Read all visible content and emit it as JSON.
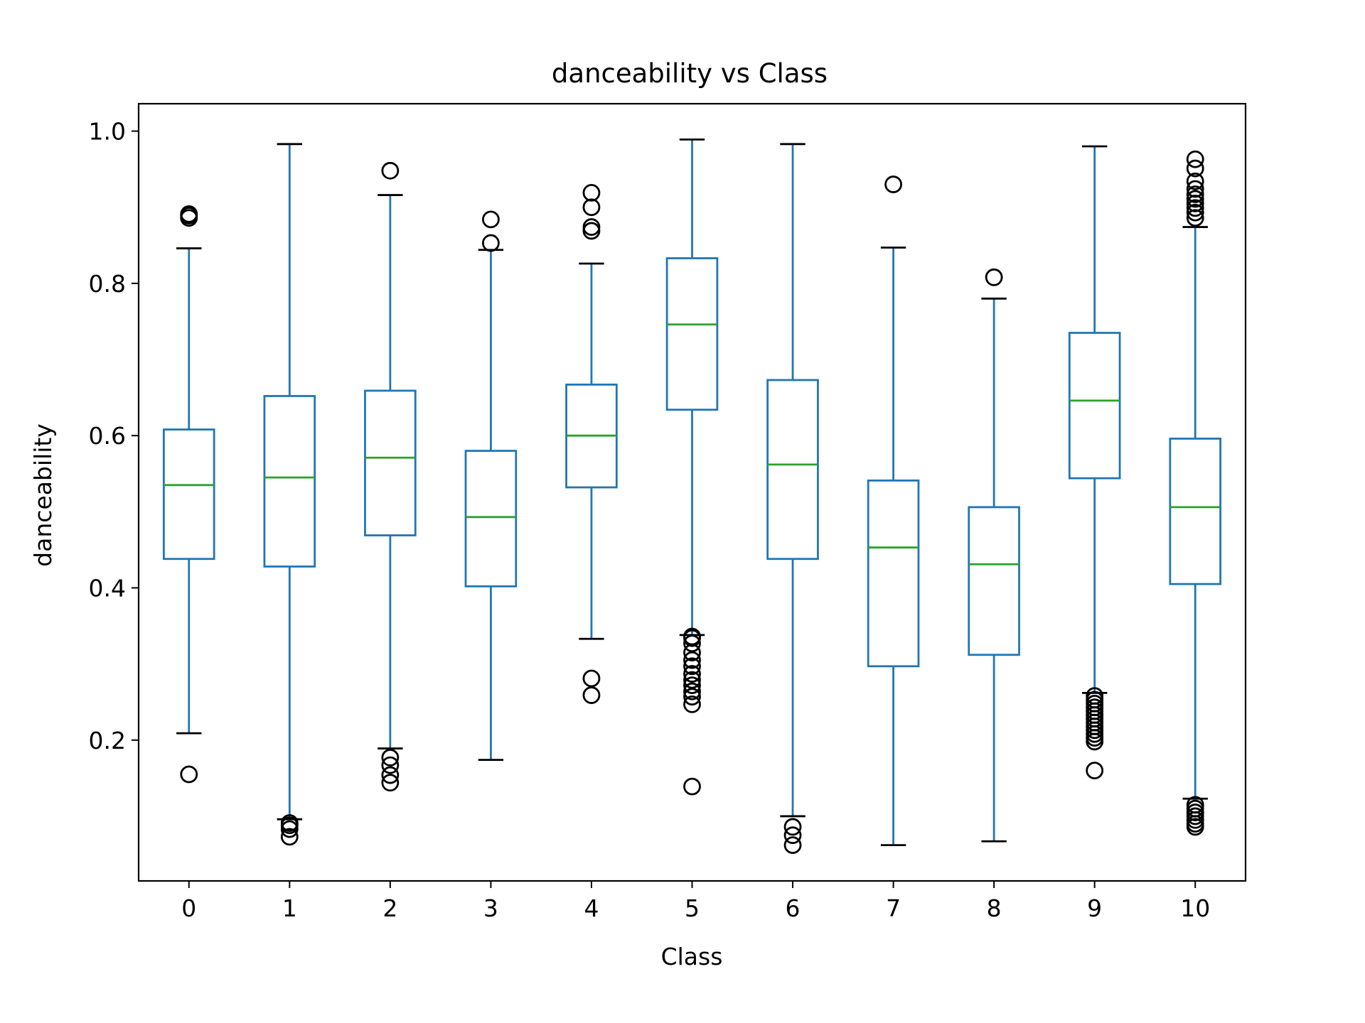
{
  "chart_data": {
    "type": "box",
    "title": "danceability vs Class",
    "xlabel": "Class",
    "ylabel": "danceability",
    "categories": [
      "0",
      "1",
      "2",
      "3",
      "4",
      "5",
      "6",
      "7",
      "8",
      "9",
      "10"
    ],
    "yticks": [
      "0.2",
      "0.4",
      "0.6",
      "0.8",
      "1.0"
    ],
    "ylim": [
      0.015,
      1.036
    ],
    "grid": false,
    "colors": {
      "box": "#1f77b4",
      "median": "#2ca02c",
      "cap": "#000000",
      "flier": "#000000"
    },
    "boxes": [
      {
        "q1": 0.438,
        "median": 0.535,
        "q3": 0.608,
        "whislo": 0.209,
        "whishi": 0.846,
        "fliers": [
          0.155,
          0.886,
          0.889,
          0.891
        ]
      },
      {
        "q1": 0.428,
        "median": 0.545,
        "q3": 0.652,
        "whislo": 0.096,
        "whishi": 0.983,
        "fliers": [
          0.073,
          0.083,
          0.088,
          0.091
        ]
      },
      {
        "q1": 0.469,
        "median": 0.571,
        "q3": 0.659,
        "whislo": 0.189,
        "whishi": 0.916,
        "fliers": [
          0.144,
          0.154,
          0.167,
          0.177,
          0.948
        ]
      },
      {
        "q1": 0.402,
        "median": 0.493,
        "q3": 0.58,
        "whislo": 0.174,
        "whishi": 0.844,
        "fliers": [
          0.853,
          0.884
        ]
      },
      {
        "q1": 0.532,
        "median": 0.6,
        "q3": 0.667,
        "whislo": 0.333,
        "whishi": 0.826,
        "fliers": [
          0.259,
          0.281,
          0.869,
          0.874,
          0.9,
          0.919
        ]
      },
      {
        "q1": 0.634,
        "median": 0.746,
        "q3": 0.833,
        "whislo": 0.338,
        "whishi": 0.989,
        "fliers": [
          0.139,
          0.247,
          0.257,
          0.264,
          0.272,
          0.279,
          0.287,
          0.297,
          0.305,
          0.315,
          0.327,
          0.334,
          0.336
        ]
      },
      {
        "q1": 0.438,
        "median": 0.562,
        "q3": 0.673,
        "whislo": 0.1,
        "whishi": 0.983,
        "fliers": [
          0.062,
          0.075,
          0.086
        ]
      },
      {
        "q1": 0.297,
        "median": 0.453,
        "q3": 0.541,
        "whislo": 0.062,
        "whishi": 0.847,
        "fliers": [
          0.93
        ]
      },
      {
        "q1": 0.312,
        "median": 0.431,
        "q3": 0.506,
        "whislo": 0.067,
        "whishi": 0.78,
        "fliers": [
          0.808
        ]
      },
      {
        "q1": 0.544,
        "median": 0.646,
        "q3": 0.735,
        "whislo": 0.262,
        "whishi": 0.98,
        "fliers": [
          0.16,
          0.198,
          0.203,
          0.208,
          0.213,
          0.218,
          0.223,
          0.228,
          0.233,
          0.238,
          0.243,
          0.248,
          0.253,
          0.258
        ]
      },
      {
        "q1": 0.405,
        "median": 0.506,
        "q3": 0.596,
        "whislo": 0.123,
        "whishi": 0.874,
        "fliers": [
          0.086,
          0.09,
          0.095,
          0.1,
          0.105,
          0.11,
          0.115,
          0.886,
          0.893,
          0.899,
          0.905,
          0.911,
          0.917,
          0.924,
          0.934,
          0.951,
          0.963
        ]
      }
    ]
  }
}
